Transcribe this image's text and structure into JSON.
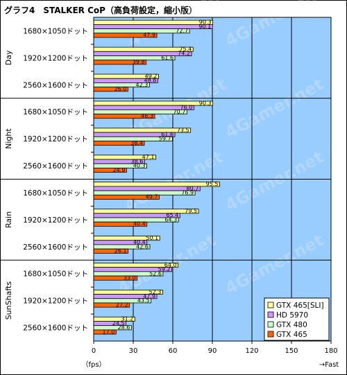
{
  "title": "グラフ4　STALKER CoP（高負荷設定，縮小版）",
  "watermark": "4Gamer.net",
  "chart_data": {
    "type": "bar",
    "orientation": "horizontal",
    "title": "グラフ4　STALKER CoP（高負荷設定，縮小版）",
    "xlabel_left": "（fps）",
    "xlabel_right": "→Fast",
    "xlim": [
      0,
      180
    ],
    "xticks": [
      0,
      30,
      60,
      90,
      120,
      150,
      180
    ],
    "grid": true,
    "legend_position": "bottom-right",
    "series": [
      {
        "name": "GTX 465[SLI]",
        "color": "#ffff99"
      },
      {
        "name": "HD 5970",
        "color": "#cc99ff"
      },
      {
        "name": "GTX 480",
        "color": "#ccffcc"
      },
      {
        "name": "GTX 465",
        "color": "#ff6600"
      }
    ],
    "groups": [
      {
        "name": "Day",
        "rows": [
          {
            "label": "1680×1050ドット",
            "values": [
              90.3,
              90.1,
              72.7,
              47.9
            ]
          },
          {
            "label": "1920×1200ドット",
            "values": [
              75.4,
              74.2,
              61.6,
              39.8
            ]
          },
          {
            "label": "2560×1600ドット",
            "values": [
              49.2,
              48.6,
              42.3,
              26.0
            ]
          }
        ]
      },
      {
        "name": "Night",
        "rows": [
          {
            "label": "1680×1050ドット",
            "values": [
              90.3,
              76.0,
              70.7,
              46.3
            ]
          },
          {
            "label": "1920×1200ドット",
            "values": [
              73.5,
              61.6,
              59.7,
              38.4
            ]
          },
          {
            "label": "2560×1600ドット",
            "values": [
              47.1,
              38.6,
              40.3,
              24.9
            ]
          }
        ]
      },
      {
        "name": "Rain",
        "rows": [
          {
            "label": "1680×1050ドット",
            "values": [
              95.5,
              80.7,
              76.9,
              49.7
            ]
          },
          {
            "label": "1920×1200ドット",
            "values": [
              79.5,
              65.4,
              64.3,
              40.4
            ]
          },
          {
            "label": "2560×1600ドット",
            "values": [
              50.1,
              40.4,
              42.6,
              26.1
            ]
          }
        ]
      },
      {
        "name": "SunShafts",
        "rows": [
          {
            "label": "1680×1050ドット",
            "values": [
              64.0,
              59.2,
              52.6,
              33.0
            ]
          },
          {
            "label": "1920×1200ドット",
            "values": [
              52.3,
              47.9,
              43.5,
              27.2
            ]
          },
          {
            "label": "2560×1600ドット",
            "values": [
              31.2,
              24.5,
              28.6,
              17.0
            ]
          }
        ]
      }
    ]
  }
}
